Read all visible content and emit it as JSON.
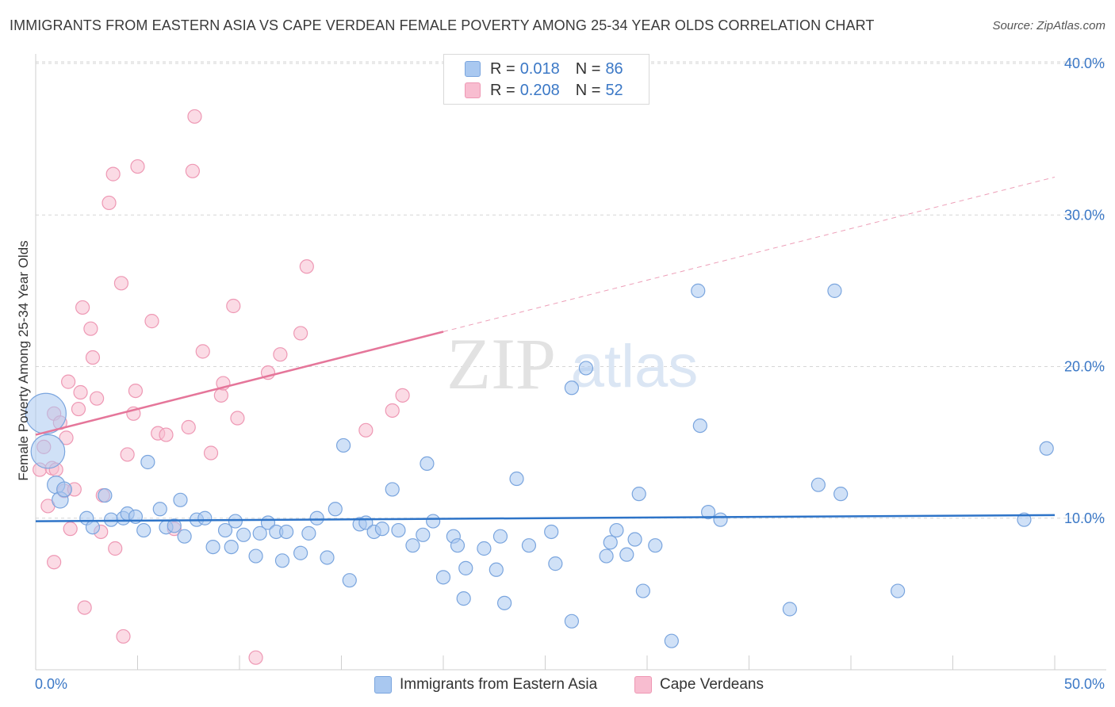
{
  "header": {
    "title": "IMMIGRANTS FROM EASTERN ASIA VS CAPE VERDEAN FEMALE POVERTY AMONG 25-34 YEAR OLDS CORRELATION CHART",
    "source": "Source: ZipAtlas.com"
  },
  "watermark": {
    "zip": "ZIP",
    "atlas": "atlas"
  },
  "legend_top": {
    "rows": [
      {
        "r_label": "R =",
        "r_value": "0.018",
        "n_label": "N =",
        "n_value": "86"
      },
      {
        "r_label": "R =",
        "r_value": "0.208",
        "n_label": "N =",
        "n_value": "52"
      }
    ]
  },
  "legend_bottom": {
    "items": [
      {
        "label": "Immigrants from Eastern Asia"
      },
      {
        "label": "Cape Verdeans"
      }
    ]
  },
  "colors": {
    "blue_fill": "#a9c8f0",
    "blue_stroke": "#7aa5de",
    "blue_line": "#2e74c8",
    "pink_fill": "#f8bdd0",
    "pink_stroke": "#ee98b4",
    "pink_line": "#e5769a",
    "tick_label": "#3b78c6",
    "grid": "#d6d6d6"
  },
  "chart_data": {
    "type": "scatter",
    "title": "IMMIGRANTS FROM EASTERN ASIA VS CAPE VERDEAN FEMALE POVERTY AMONG 25-34 YEAR OLDS CORRELATION CHART",
    "xlabel": "",
    "ylabel": "Female Poverty Among 25-34 Year Olds",
    "xlim": [
      0,
      50
    ],
    "ylim": [
      0,
      40
    ],
    "x_tick_labels": [
      "0.0%",
      "50.0%"
    ],
    "y_ticks": [
      10,
      20,
      30,
      40
    ],
    "y_tick_labels": [
      "10.0%",
      "20.0%",
      "30.0%",
      "40.0%"
    ],
    "grid": true,
    "legend_placement": "top-center",
    "series": [
      {
        "name": "Immigrants from Eastern Asia",
        "color": "#a9c8f0",
        "trend": {
          "x": [
            0,
            50
          ],
          "y": [
            9.8,
            10.2
          ],
          "dashed_after": null
        },
        "points": [
          [
            0.5,
            16.9,
            3
          ],
          [
            0.6,
            14.4,
            2.5
          ],
          [
            1.0,
            12.2,
            1.3
          ],
          [
            1.2,
            11.2,
            1.2
          ],
          [
            1.4,
            11.9,
            1.1
          ],
          [
            2.5,
            10.0,
            1
          ],
          [
            2.8,
            9.4,
            1
          ],
          [
            3.4,
            11.5,
            1
          ],
          [
            3.7,
            9.9,
            1
          ],
          [
            4.3,
            10.0,
            1
          ],
          [
            4.5,
            10.3,
            1
          ],
          [
            4.9,
            10.1,
            1
          ],
          [
            5.3,
            9.2,
            1
          ],
          [
            5.5,
            13.7,
            1
          ],
          [
            6.1,
            10.6,
            1
          ],
          [
            6.4,
            9.4,
            1
          ],
          [
            6.8,
            9.5,
            1
          ],
          [
            7.1,
            11.2,
            1
          ],
          [
            7.3,
            8.8,
            1
          ],
          [
            7.9,
            9.9,
            1
          ],
          [
            8.3,
            10.0,
            1
          ],
          [
            8.7,
            8.1,
            1
          ],
          [
            9.3,
            9.2,
            1
          ],
          [
            9.6,
            8.1,
            1
          ],
          [
            9.8,
            9.8,
            1
          ],
          [
            10.2,
            8.9,
            1
          ],
          [
            10.8,
            7.5,
            1
          ],
          [
            11.0,
            9.0,
            1
          ],
          [
            11.4,
            9.7,
            1
          ],
          [
            11.8,
            9.1,
            1
          ],
          [
            12.1,
            7.2,
            1
          ],
          [
            12.3,
            9.1,
            1
          ],
          [
            13.0,
            7.7,
            1
          ],
          [
            13.4,
            9.0,
            1
          ],
          [
            13.8,
            10.0,
            1
          ],
          [
            14.3,
            7.4,
            1
          ],
          [
            14.7,
            10.6,
            1
          ],
          [
            15.1,
            14.8,
            1
          ],
          [
            15.4,
            5.9,
            1
          ],
          [
            15.9,
            9.6,
            1
          ],
          [
            16.2,
            9.7,
            1
          ],
          [
            16.6,
            9.1,
            1
          ],
          [
            17.0,
            9.3,
            1
          ],
          [
            17.5,
            11.9,
            1
          ],
          [
            17.8,
            9.2,
            1
          ],
          [
            18.5,
            8.2,
            1
          ],
          [
            19.0,
            8.9,
            1
          ],
          [
            19.2,
            13.6,
            1
          ],
          [
            19.5,
            9.8,
            1
          ],
          [
            20.0,
            6.1,
            1
          ],
          [
            20.5,
            8.8,
            1
          ],
          [
            20.7,
            8.2,
            1
          ],
          [
            21.0,
            4.7,
            1
          ],
          [
            21.1,
            6.7,
            1
          ],
          [
            22.0,
            8.0,
            1
          ],
          [
            22.6,
            6.6,
            1
          ],
          [
            23.0,
            4.4,
            1
          ],
          [
            22.8,
            8.8,
            1
          ],
          [
            23.6,
            12.6,
            1
          ],
          [
            24.2,
            8.2,
            1
          ],
          [
            25.3,
            9.1,
            1
          ],
          [
            25.5,
            7.0,
            1
          ],
          [
            26.3,
            18.6,
            1
          ],
          [
            26.3,
            3.2,
            1
          ],
          [
            27.0,
            19.9,
            1
          ],
          [
            28.0,
            7.5,
            1
          ],
          [
            28.2,
            8.4,
            1
          ],
          [
            28.5,
            9.2,
            1
          ],
          [
            29.0,
            7.6,
            1
          ],
          [
            29.4,
            8.6,
            1
          ],
          [
            29.6,
            11.6,
            1
          ],
          [
            29.8,
            5.2,
            1
          ],
          [
            30.4,
            8.2,
            1
          ],
          [
            31.2,
            1.9,
            1
          ],
          [
            32.5,
            25.0,
            1
          ],
          [
            32.6,
            16.1,
            1
          ],
          [
            33.0,
            10.4,
            1
          ],
          [
            33.6,
            9.9,
            1
          ],
          [
            37.0,
            4.0,
            1
          ],
          [
            38.4,
            12.2,
            1
          ],
          [
            39.2,
            25.0,
            1
          ],
          [
            39.5,
            11.6,
            1
          ],
          [
            42.3,
            5.2,
            1
          ],
          [
            48.5,
            9.9,
            1
          ],
          [
            49.6,
            14.6,
            1
          ]
        ]
      },
      {
        "name": "Cape Verdeans",
        "color": "#f8bdd0",
        "trend": {
          "x": [
            0,
            50
          ],
          "y": [
            15.5,
            32.5
          ],
          "dashed_after": 20
        },
        "points": [
          [
            0.2,
            13.2,
            1
          ],
          [
            0.4,
            14.7,
            1
          ],
          [
            0.6,
            10.8,
            1
          ],
          [
            0.8,
            13.3,
            1
          ],
          [
            0.9,
            16.9,
            1
          ],
          [
            0.9,
            7.1,
            1
          ],
          [
            1.0,
            13.2,
            1
          ],
          [
            1.2,
            16.3,
            1
          ],
          [
            1.4,
            11.8,
            1
          ],
          [
            1.5,
            15.3,
            1
          ],
          [
            1.6,
            19.0,
            1
          ],
          [
            1.7,
            9.3,
            1
          ],
          [
            1.9,
            11.9,
            1
          ],
          [
            2.1,
            17.2,
            1
          ],
          [
            2.2,
            18.3,
            1
          ],
          [
            2.3,
            23.9,
            1
          ],
          [
            2.4,
            4.1,
            1
          ],
          [
            2.7,
            22.5,
            1
          ],
          [
            2.8,
            20.6,
            1
          ],
          [
            3.0,
            17.9,
            1
          ],
          [
            3.2,
            9.1,
            1
          ],
          [
            3.3,
            11.5,
            1
          ],
          [
            3.6,
            30.8,
            1
          ],
          [
            3.8,
            32.7,
            1
          ],
          [
            3.9,
            8.0,
            1
          ],
          [
            4.2,
            25.5,
            1
          ],
          [
            4.3,
            2.2,
            1
          ],
          [
            4.5,
            14.2,
            1
          ],
          [
            4.8,
            16.9,
            1
          ],
          [
            4.9,
            18.4,
            1
          ],
          [
            5.0,
            33.2,
            1
          ],
          [
            5.7,
            23.0,
            1
          ],
          [
            6.0,
            15.6,
            1
          ],
          [
            6.4,
            15.5,
            1
          ],
          [
            6.8,
            9.3,
            1
          ],
          [
            7.5,
            16.0,
            1
          ],
          [
            7.7,
            32.9,
            1
          ],
          [
            7.8,
            36.5,
            1
          ],
          [
            8.2,
            21.0,
            1
          ],
          [
            8.6,
            14.3,
            1
          ],
          [
            9.1,
            18.1,
            1
          ],
          [
            9.2,
            18.9,
            1
          ],
          [
            9.7,
            24.0,
            1
          ],
          [
            9.9,
            16.6,
            1
          ],
          [
            10.8,
            0.8,
            1
          ],
          [
            11.4,
            19.6,
            1
          ],
          [
            12.0,
            20.8,
            1
          ],
          [
            13.3,
            26.6,
            1
          ],
          [
            13.0,
            22.2,
            1
          ],
          [
            16.2,
            15.8,
            1
          ],
          [
            17.5,
            17.1,
            1
          ],
          [
            18.0,
            18.1,
            1
          ]
        ]
      }
    ]
  },
  "y_axis_title": "Female Poverty Among 25-34 Year Olds"
}
